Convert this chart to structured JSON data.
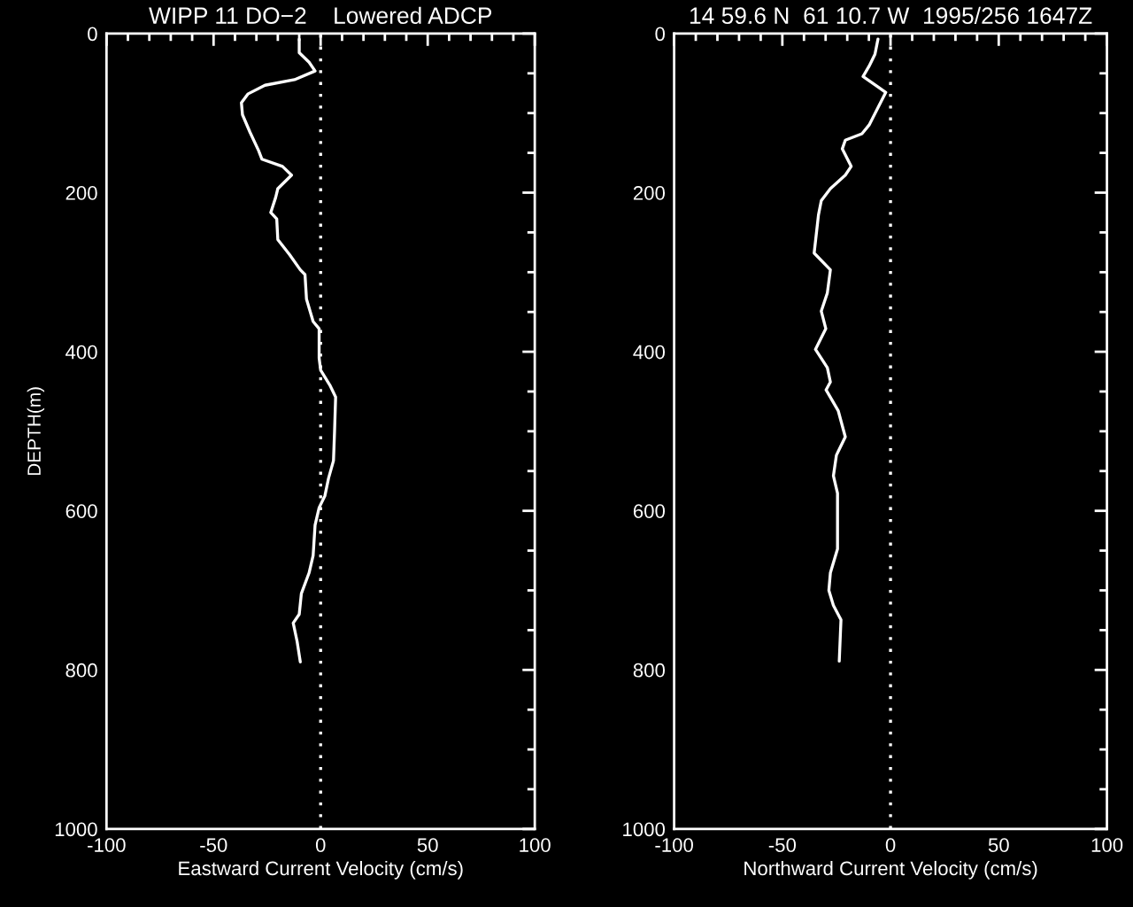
{
  "chart_data": [
    {
      "type": "line",
      "title": "WIPP 11 DO−2    Lowered ADCP",
      "xlabel": "Eastward Current Velocity (cm/s)",
      "ylabel": "DEPTH(m)",
      "series": [
        {
          "color": "#ffffff",
          "x": [
            -10.0,
            -10.0,
            -5.4,
            -2.6,
            -12.2,
            -26,
            -34,
            -37,
            -36.5,
            -33,
            -29,
            -27.4,
            -17.8,
            -13.6,
            -20,
            -21,
            -23.3,
            -20.5,
            -20,
            -14.5,
            -9.5,
            -7.3,
            -6.6,
            -3.5,
            -0.7,
            -0.7,
            0,
            4.3,
            7,
            6.5,
            6,
            3.7,
            2,
            -0.7,
            -2.6,
            -3.5,
            -5.4,
            -9,
            -10,
            -12.8,
            -11,
            -9.5
          ],
          "values": [
            7,
            24,
            36,
            47,
            58,
            65,
            76,
            87,
            102,
            124,
            147,
            158,
            167,
            178,
            195,
            206,
            225,
            233,
            259,
            278,
            297,
            303,
            334,
            362,
            371,
            408,
            423,
            442,
            457,
            500,
            537,
            559,
            581,
            596,
            618,
            656,
            678,
            704,
            730,
            741,
            764,
            790
          ]
        }
      ],
      "xlim": [
        -100,
        100
      ],
      "ylim": [
        1000,
        0
      ],
      "xticks": [
        -100,
        {
          "value": -90,
          "label": null
        },
        {
          "value": -80,
          "label": null
        },
        {
          "value": -70,
          "label": null
        },
        {
          "value": -60,
          "label": null
        },
        -50,
        {
          "value": -40,
          "label": null
        },
        {
          "value": -30,
          "label": null
        },
        {
          "value": -20,
          "label": null
        },
        {
          "value": -10,
          "label": null
        },
        0,
        {
          "value": 10,
          "label": null
        },
        {
          "value": 20,
          "label": null
        },
        {
          "value": 30,
          "label": null
        },
        {
          "value": 40,
          "label": null
        },
        50,
        {
          "value": 60,
          "label": null
        },
        {
          "value": 70,
          "label": null
        },
        {
          "value": 80,
          "label": null
        },
        {
          "value": 90,
          "label": null
        },
        100
      ],
      "yticks": [
        0,
        {
          "value": 50,
          "label": null
        },
        {
          "value": 100,
          "label": null
        },
        {
          "value": 150,
          "label": null
        },
        200,
        {
          "value": 250,
          "label": null
        },
        {
          "value": 300,
          "label": null
        },
        {
          "value": 350,
          "label": null
        },
        400,
        {
          "value": 450,
          "label": null
        },
        {
          "value": 500,
          "label": null
        },
        {
          "value": 550,
          "label": null
        },
        600,
        {
          "value": 650,
          "label": null
        },
        {
          "value": 700,
          "label": null
        },
        {
          "value": 750,
          "label": null
        },
        800,
        {
          "value": 850,
          "label": null
        },
        {
          "value": 900,
          "label": null
        },
        {
          "value": 950,
          "label": null
        },
        1000
      ],
      "ref_lines": [
        {
          "axis": "x",
          "value": 0,
          "color": "#ffffff",
          "line_style": "dotted"
        }
      ],
      "grid": false,
      "legend": false
    },
    {
      "type": "line",
      "title": "14 59.6 N  61 10.7 W  1995/256 1647Z",
      "xlabel": "Northward Current Velocity (cm/s)",
      "series": [
        {
          "color": "#ffffff",
          "x": [
            -5.8,
            -7.2,
            -9.9,
            -12.7,
            -5.8,
            -2.2,
            -5.8,
            -9.9,
            -13.2,
            -20.9,
            -22.3,
            -18.2,
            -20.9,
            -27.8,
            -32,
            -33.3,
            -35.3,
            -27.8,
            -29.2,
            -32,
            -29.9,
            -34.7,
            -29.2,
            -27.8,
            -29.8,
            -24.2,
            -20.9,
            -25,
            -26.4,
            -24.5,
            -24.5,
            -27.8,
            -28.5,
            -26.4,
            -22.9,
            -23.7
          ],
          "values": [
            7,
            26,
            41,
            54,
            67,
            74,
            93,
            115,
            126,
            134,
            145,
            167,
            178,
            195,
            210,
            228,
            276,
            297,
            326,
            349,
            371,
            397,
            420,
            438,
            448,
            474,
            507,
            530,
            556,
            578,
            648,
            678,
            700,
            719,
            737,
            789
          ]
        }
      ],
      "xlim": [
        -100,
        100
      ],
      "ylim": [
        1000,
        0
      ],
      "xticks": [
        -100,
        {
          "value": -90,
          "label": null
        },
        {
          "value": -80,
          "label": null
        },
        {
          "value": -70,
          "label": null
        },
        {
          "value": -60,
          "label": null
        },
        -50,
        {
          "value": -40,
          "label": null
        },
        {
          "value": -30,
          "label": null
        },
        {
          "value": -20,
          "label": null
        },
        {
          "value": -10,
          "label": null
        },
        0,
        {
          "value": 10,
          "label": null
        },
        {
          "value": 20,
          "label": null
        },
        {
          "value": 30,
          "label": null
        },
        {
          "value": 40,
          "label": null
        },
        50,
        {
          "value": 60,
          "label": null
        },
        {
          "value": 70,
          "label": null
        },
        {
          "value": 80,
          "label": null
        },
        {
          "value": 90,
          "label": null
        },
        100
      ],
      "yticks": [
        0,
        {
          "value": 50,
          "label": null
        },
        {
          "value": 100,
          "label": null
        },
        {
          "value": 150,
          "label": null
        },
        200,
        {
          "value": 250,
          "label": null
        },
        {
          "value": 300,
          "label": null
        },
        {
          "value": 350,
          "label": null
        },
        400,
        {
          "value": 450,
          "label": null
        },
        {
          "value": 500,
          "label": null
        },
        {
          "value": 550,
          "label": null
        },
        600,
        {
          "value": 650,
          "label": null
        },
        {
          "value": 700,
          "label": null
        },
        {
          "value": 750,
          "label": null
        },
        800,
        {
          "value": 850,
          "label": null
        },
        {
          "value": 900,
          "label": null
        },
        {
          "value": 950,
          "label": null
        },
        1000
      ],
      "ref_lines": [
        {
          "axis": "x",
          "value": 0,
          "color": "#ffffff",
          "line_style": "dotted"
        }
      ],
      "grid": false,
      "legend": false
    }
  ]
}
